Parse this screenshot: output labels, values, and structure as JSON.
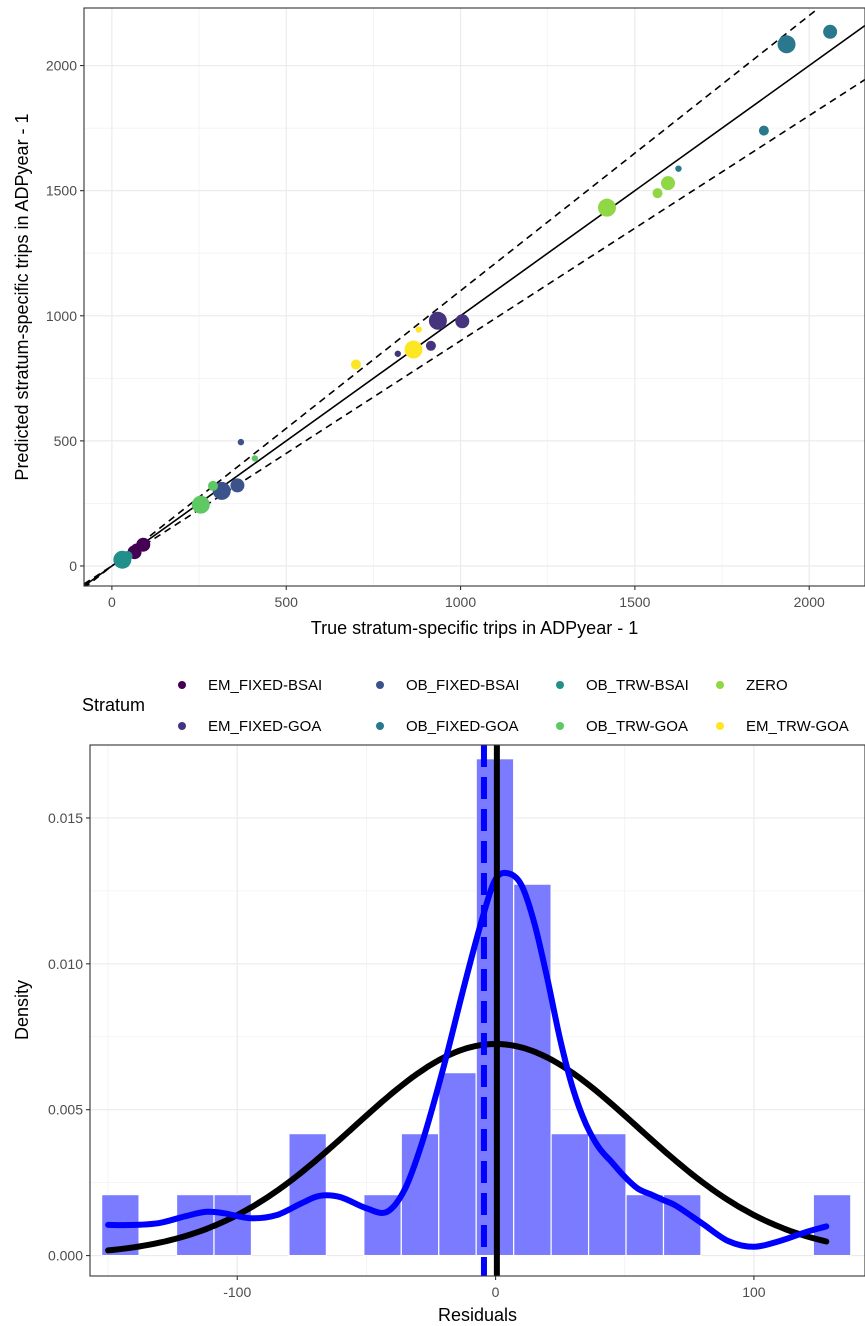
{
  "chart_data": [
    {
      "type": "scatter",
      "xlabel": "True stratum-specific trips in ADPyear - 1",
      "ylabel": "Predicted stratum-specific trips in ADPyear - 1",
      "xlim": [
        -80,
        2160
      ],
      "ylim": [
        -80,
        2230
      ],
      "x_ticks": [
        0,
        500,
        1000,
        1500,
        2000
      ],
      "y_ticks": [
        0,
        500,
        1000,
        1500,
        2000
      ],
      "grid": true,
      "reference_lines": [
        {
          "style": "solid",
          "slope": 1.0
        },
        {
          "style": "dashed",
          "slope": 1.1
        },
        {
          "style": "dashed",
          "slope": 0.9
        }
      ],
      "legend": {
        "title": "Stratum",
        "position": "bottom",
        "entries": [
          {
            "label": "EM_FIXED-BSAI",
            "color": "#440154"
          },
          {
            "label": "OB_FIXED-BSAI",
            "color": "#3b528b"
          },
          {
            "label": "OB_TRW-BSAI",
            "color": "#21908c"
          },
          {
            "label": "ZERO",
            "color": "#8fd744"
          },
          {
            "label": "EM_FIXED-GOA",
            "color": "#46337e"
          },
          {
            "label": "OB_FIXED-GOA",
            "color": "#2a788e"
          },
          {
            "label": "OB_TRW-GOA",
            "color": "#5ec962"
          },
          {
            "label": "EM_TRW-GOA",
            "color": "#fde725"
          }
        ]
      },
      "points": [
        {
          "stratum": "EM_FIXED-BSAI",
          "x": 65,
          "y": 55,
          "size": 3
        },
        {
          "stratum": "EM_FIXED-BSAI",
          "x": 90,
          "y": 85,
          "size": 3
        },
        {
          "stratum": "EM_FIXED-BSAI",
          "x": 70,
          "y": 70,
          "size": 2
        },
        {
          "stratum": "EM_FIXED-GOA",
          "x": 935,
          "y": 980,
          "size": 4
        },
        {
          "stratum": "EM_FIXED-GOA",
          "x": 1005,
          "y": 978,
          "size": 3
        },
        {
          "stratum": "EM_FIXED-GOA",
          "x": 915,
          "y": 880,
          "size": 2
        },
        {
          "stratum": "EM_FIXED-GOA",
          "x": 820,
          "y": 848,
          "size": 1
        },
        {
          "stratum": "OB_FIXED-BSAI",
          "x": 315,
          "y": 300,
          "size": 4
        },
        {
          "stratum": "OB_FIXED-BSAI",
          "x": 360,
          "y": 322,
          "size": 3
        },
        {
          "stratum": "OB_FIXED-BSAI",
          "x": 370,
          "y": 495,
          "size": 1
        },
        {
          "stratum": "OB_FIXED-GOA",
          "x": 1935,
          "y": 2085,
          "size": 4
        },
        {
          "stratum": "OB_FIXED-GOA",
          "x": 2060,
          "y": 2135,
          "size": 3
        },
        {
          "stratum": "OB_FIXED-GOA",
          "x": 1870,
          "y": 1740,
          "size": 2
        },
        {
          "stratum": "OB_FIXED-GOA",
          "x": 1625,
          "y": 1588,
          "size": 1
        },
        {
          "stratum": "OB_TRW-BSAI",
          "x": 30,
          "y": 25,
          "size": 4
        },
        {
          "stratum": "OB_TRW-BSAI",
          "x": 45,
          "y": 40,
          "size": 2
        },
        {
          "stratum": "OB_TRW-GOA",
          "x": 255,
          "y": 245,
          "size": 4
        },
        {
          "stratum": "OB_TRW-GOA",
          "x": 290,
          "y": 320,
          "size": 2
        },
        {
          "stratum": "OB_TRW-GOA",
          "x": 410,
          "y": 430,
          "size": 1
        },
        {
          "stratum": "ZERO",
          "x": 1420,
          "y": 1432,
          "size": 4
        },
        {
          "stratum": "ZERO",
          "x": 1595,
          "y": 1530,
          "size": 3
        },
        {
          "stratum": "ZERO",
          "x": 1565,
          "y": 1490,
          "size": 2
        },
        {
          "stratum": "EM_TRW-GOA",
          "x": 865,
          "y": 865,
          "size": 4
        },
        {
          "stratum": "EM_TRW-GOA",
          "x": 700,
          "y": 805,
          "size": 2
        },
        {
          "stratum": "EM_TRW-GOA",
          "x": 880,
          "y": 945,
          "size": 1
        }
      ]
    },
    {
      "type": "bar",
      "subtype": "histogram-with-density",
      "xlabel": "Residuals",
      "ylabel": "Density",
      "xlim": [
        -157,
        143
      ],
      "ylim": [
        -0.0007,
        0.0175
      ],
      "x_ticks": [
        -100,
        0,
        100
      ],
      "x_tick_labels": [
        "-100",
        "0",
        "100"
      ],
      "y_ticks": [
        0,
        0.005,
        0.01,
        0.015
      ],
      "y_tick_labels": [
        "0.000",
        "0.005",
        "0.010",
        "0.015"
      ],
      "grid": true,
      "bar_color": "#7b7bff",
      "bin_width": 14.5,
      "bins": [
        {
          "left": -152.5,
          "density": 0.00209
        },
        {
          "left": -138.0,
          "density": 0
        },
        {
          "left": -123.5,
          "density": 0.00209
        },
        {
          "left": -109.0,
          "density": 0.00209
        },
        {
          "left": -94.5,
          "density": 0
        },
        {
          "left": -80.0,
          "density": 0.00418
        },
        {
          "left": -65.5,
          "density": 0
        },
        {
          "left": -51.0,
          "density": 0.00209
        },
        {
          "left": -36.5,
          "density": 0.00418
        },
        {
          "left": -22.0,
          "density": 0.00627
        },
        {
          "left": -7.5,
          "density": 0.01703
        },
        {
          "left": 7.0,
          "density": 0.01273
        },
        {
          "left": 21.5,
          "density": 0.00418
        },
        {
          "left": 36.0,
          "density": 0.00418
        },
        {
          "left": 50.5,
          "density": 0.00209
        },
        {
          "left": 65.0,
          "density": 0.00209
        },
        {
          "left": 79.5,
          "density": 0
        },
        {
          "left": 94.0,
          "density": 0
        },
        {
          "left": 108.5,
          "density": 0
        },
        {
          "left": 123.0,
          "density": 0.00209
        }
      ],
      "normal_curve": {
        "color": "#000000",
        "mean": 0,
        "sd": 55,
        "x_range": [
          -150,
          128
        ]
      },
      "kde_curve": {
        "color": "#0000ff",
        "x": [
          -150,
          -140,
          -130,
          -120,
          -112,
          -105,
          -95,
          -85,
          -75,
          -68,
          -60,
          -50,
          -42,
          -35,
          -28,
          -20,
          -12,
          -5,
          0,
          5,
          10,
          15,
          20,
          25,
          30,
          35,
          40,
          45,
          50,
          55,
          60,
          65,
          70,
          80,
          90,
          100,
          110,
          120,
          128
        ],
        "y": [
          0.00105,
          0.00105,
          0.00112,
          0.00135,
          0.0015,
          0.00145,
          0.00128,
          0.00138,
          0.0018,
          0.00205,
          0.002,
          0.00162,
          0.0015,
          0.0023,
          0.004,
          0.0065,
          0.0093,
          0.0116,
          0.0129,
          0.0131,
          0.0127,
          0.0114,
          0.0095,
          0.0074,
          0.0057,
          0.0045,
          0.0037,
          0.0032,
          0.0027,
          0.0023,
          0.0021,
          0.0019,
          0.0017,
          0.0011,
          0.0005,
          0.0003,
          0.0005,
          0.0008,
          0.001
        ]
      },
      "vlines": [
        {
          "x": 0.5,
          "color": "#000000",
          "style": "solid"
        },
        {
          "x": -4.5,
          "color": "#0000ff",
          "style": "dashed"
        }
      ]
    }
  ]
}
